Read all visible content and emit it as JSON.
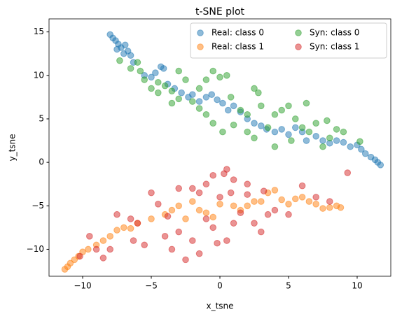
{
  "chart_data": {
    "type": "scatter",
    "title": "t-SNE plot",
    "x_label": "x_tsne",
    "y_label": "y_tsne",
    "xlim": [
      -12.45,
      12.45
    ],
    "ylim": [
      -13.1,
      16.5
    ],
    "xticks": [
      {
        "value": -10,
        "label": "−10"
      },
      {
        "value": -5,
        "label": "−5"
      },
      0,
      5,
      10
    ],
    "yticks": [
      {
        "value": -10,
        "label": "−10"
      },
      {
        "value": -5,
        "label": "−5"
      },
      0,
      5,
      10,
      15
    ],
    "grid": false,
    "legend": "upper right",
    "legend_columns": 2,
    "alpha": 0.5,
    "series": [
      {
        "name": "Real: class 0",
        "color": "#1f77b4",
        "x": [
          -8,
          -7.8,
          -7.6,
          -7.4,
          -7.2,
          -6.9,
          -6.7,
          -7,
          -6.5,
          -7.5,
          -6.3,
          -5.5,
          -5,
          -4.7,
          -4.3,
          -4.1,
          -3.8,
          -3.3,
          -2.8,
          -2.3,
          -2,
          -1.5,
          -1,
          -0.6,
          -0.2,
          0.2,
          0.6,
          1,
          1.5,
          2,
          2.5,
          3,
          3.4,
          4,
          4.5,
          5,
          5.5,
          6,
          6.3,
          7,
          7.5,
          8,
          8.5,
          9,
          9.5,
          10,
          10.3,
          10.6,
          11,
          11.3,
          11.5,
          11.7
        ],
        "values": [
          14.7,
          14.3,
          14,
          13.6,
          13.2,
          13.5,
          12.8,
          12.5,
          12.3,
          13,
          11.5,
          10,
          9.8,
          10.3,
          11,
          10.8,
          9,
          8.5,
          8,
          7.5,
          7.8,
          7,
          7.5,
          7.8,
          7.2,
          6.8,
          6,
          6.5,
          5.8,
          5,
          4.5,
          4.2,
          3.8,
          3.5,
          3.8,
          3.2,
          4,
          3.5,
          2.5,
          3,
          2.5,
          2.2,
          2.5,
          2.3,
          1.8,
          2,
          1.5,
          1,
          0.6,
          0.3,
          0,
          -0.3
        ]
      },
      {
        "name": "Real: class 1",
        "color": "#ff7f0e",
        "x": [
          -11.3,
          -11.1,
          -10.9,
          -10.6,
          -10.3,
          -10,
          -9.6,
          -9,
          -8.5,
          -8,
          -7.5,
          -7,
          -6.5,
          -6,
          -5,
          -4,
          -3.5,
          -3,
          -2.5,
          -2,
          -1.5,
          -1,
          -0.5,
          0,
          1,
          1.5,
          2,
          2.5,
          3,
          3.5,
          4,
          4.5,
          5,
          5.5,
          6,
          6.5,
          7,
          7.5,
          8,
          8.5,
          8.8
        ],
        "values": [
          -12.3,
          -12,
          -11.6,
          -11.2,
          -10.8,
          -10.3,
          -10,
          -9.5,
          -9,
          -8.5,
          -7.8,
          -7.5,
          -7.6,
          -7,
          -6.5,
          -6,
          -5.5,
          -5,
          -6.5,
          -4.5,
          -5.5,
          -5.8,
          -6.3,
          -4.8,
          -5,
          -5.5,
          -5,
          -4.5,
          -4.5,
          -3.5,
          -3.2,
          -4.3,
          -4.8,
          -4.2,
          -4,
          -4.5,
          -4.8,
          -5.3,
          -5.2,
          -5,
          -5.2
        ]
      },
      {
        "name": "Syn: class 0",
        "color": "#2ca02c",
        "x": [
          -7.3,
          -6.5,
          -6,
          -5.8,
          -5.5,
          -5,
          -4.5,
          -4.5,
          -4,
          -3.5,
          -3.5,
          -3,
          -3,
          -2.5,
          -2,
          -1.5,
          -1.5,
          -1,
          -1,
          -0.5,
          -0.5,
          0,
          0.2,
          0.5,
          0.8,
          1,
          1.5,
          2,
          2,
          2.5,
          2.8,
          3,
          3.5,
          4,
          4.5,
          5,
          5.2,
          5.5,
          6,
          6.3,
          6.5,
          7,
          7.5,
          7.8,
          8,
          8.5,
          9,
          10.2,
          4,
          2.5
        ],
        "values": [
          11.7,
          10.8,
          11.5,
          10.5,
          9.5,
          8.5,
          8,
          9.2,
          8.8,
          8.2,
          6.8,
          7.3,
          10.5,
          9.5,
          7,
          6.2,
          8.5,
          9.5,
          5.5,
          4.5,
          10.5,
          9.8,
          3.5,
          10,
          7.5,
          4.3,
          6,
          5.5,
          3.5,
          8.5,
          8,
          6.5,
          4,
          5.5,
          6,
          6.5,
          2.5,
          5,
          4,
          6.8,
          3.5,
          4.5,
          1.8,
          4.8,
          2.8,
          3.8,
          3.5,
          2.4,
          1.8,
          2.8
        ]
      },
      {
        "name": "Syn: class 1",
        "color": "#d62728",
        "x": [
          0.5,
          0.3,
          -0.5,
          1,
          -1,
          0.8,
          -3,
          -5,
          -6.5,
          -7.5,
          -8,
          -9,
          -9.5,
          -8.5,
          -10.2,
          -6,
          -5.5,
          -4.5,
          -4,
          -3.5,
          -3,
          -2.5,
          -2,
          -1.5,
          -1,
          -0.5,
          0,
          0.5,
          1,
          2,
          2.5,
          3,
          3.5,
          4,
          5,
          6,
          7,
          8,
          9.3,
          -2,
          2,
          1.5,
          -1.5,
          -3.8,
          -6.3,
          3.2,
          -0.2
        ],
        "values": [
          -0.8,
          -1.3,
          -1.5,
          -2,
          -2.5,
          -3.5,
          -3,
          -3.5,
          -6.5,
          -6,
          -10,
          -10,
          -8.5,
          -11,
          -10.8,
          -7,
          -9.5,
          -4.8,
          -8.5,
          -10,
          -8,
          -11.2,
          -9,
          -10.5,
          -6.5,
          -7.5,
          -4,
          -9,
          -7,
          -3.7,
          -7,
          -8,
          -6,
          -5.5,
          -6,
          -2.7,
          -4,
          -4.5,
          -1.2,
          -3,
          -2.5,
          -5.8,
          -3.5,
          -6.2,
          -9,
          -3.3,
          -9.3
        ]
      }
    ]
  }
}
